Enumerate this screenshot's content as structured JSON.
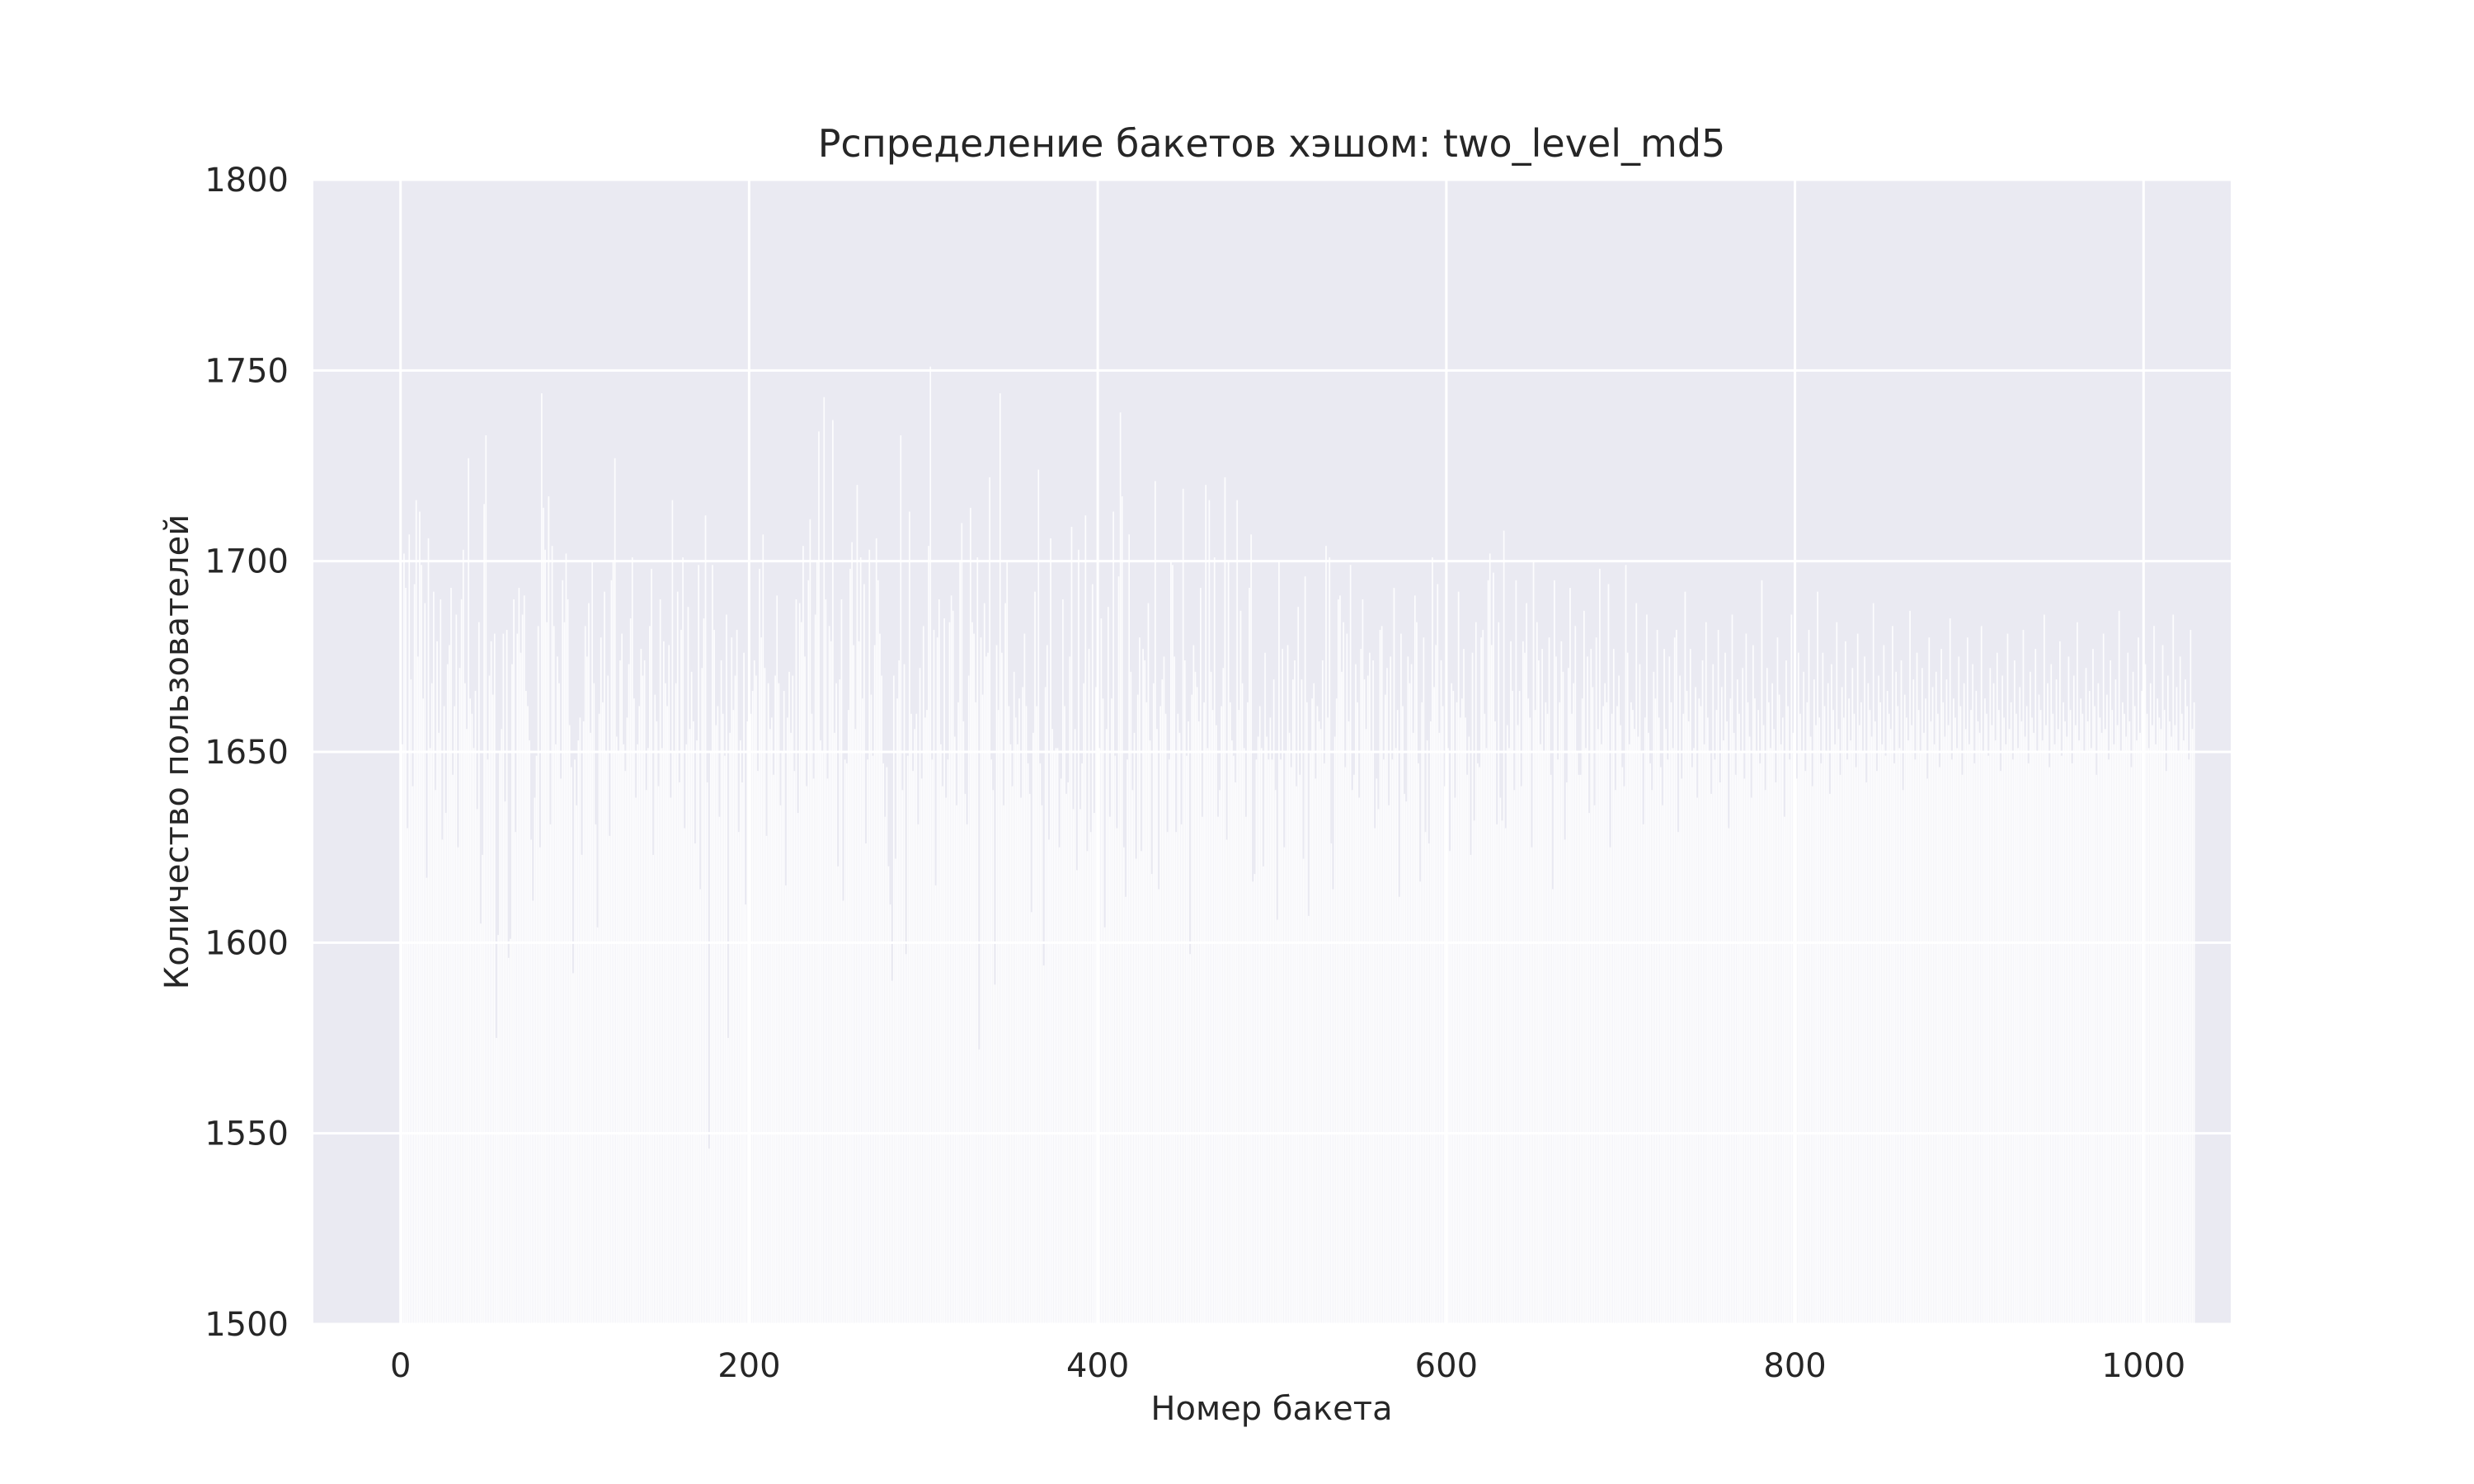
{
  "chart_data": {
    "type": "bar",
    "title": "Рспределение бакетов хэшом: two_level_md5",
    "xlabel": "Номер бакета",
    "ylabel": "Количество пользователей",
    "xlim": [
      -50,
      1050
    ],
    "ylim": [
      1500,
      1800
    ],
    "xticks": [
      0,
      200,
      400,
      600,
      800,
      1000
    ],
    "yticks": [
      1500,
      1550,
      1600,
      1650,
      1700,
      1750,
      1800
    ],
    "grid": true,
    "background": "#eaeaf2",
    "bar_color": "#ffffff",
    "bucket_count": 1000,
    "values": [
      1689,
      1652,
      1702,
      1693,
      1630,
      1707,
      1669,
      1641,
      1694,
      1716,
      1675,
      1713,
      1699,
      1664,
      1689,
      1617,
      1706,
      1651,
      1668,
      1692,
      1640,
      1679,
      1655,
      1690,
      1627,
      1662,
      1634,
      1673,
      1678,
      1693,
      1644,
      1662,
      1686,
      1625,
      1672,
      1690,
      1703,
      1668,
      1656,
      1727,
      1664,
      1660,
      1651,
      1666,
      1635,
      1684,
      1605,
      1623,
      1715,
      1733,
      1648,
      1670,
      1679,
      1665,
      1681,
      1575,
      1602,
      1650,
      1656,
      1681,
      1637,
      1682,
      1596,
      1601,
      1673,
      1690,
      1629,
      1681,
      1693,
      1676,
      1686,
      1691,
      1666,
      1662,
      1653,
      1627,
      1611,
      1638,
      1649,
      1683,
      1625,
      1744,
      1714,
      1703,
      1684,
      1717,
      1631,
      1704,
      1683,
      1652,
      1675,
      1668,
      1643,
      1695,
      1684,
      1702,
      1690,
      1657,
      1646,
      1592,
      1648,
      1636,
      1653,
      1659,
      1623,
      1658,
      1683,
      1675,
      1689,
      1655,
      1700,
      1668,
      1631,
      1604,
      1660,
      1680,
      1663,
      1692,
      1650,
      1670,
      1628,
      1695,
      1700,
      1727,
      1654,
      1650,
      1674,
      1681,
      1652,
      1645,
      1659,
      1673,
      1685,
      1701,
      1664,
      1638,
      1652,
      1662,
      1677,
      1670,
      1674,
      1640,
      1651,
      1683,
      1698,
      1623,
      1665,
      1658,
      1641,
      1690,
      1651,
      1679,
      1668,
      1662,
      1678,
      1638,
      1716,
      1650,
      1668,
      1692,
      1642,
      1682,
      1701,
      1630,
      1652,
      1688,
      1656,
      1671,
      1658,
      1626,
      1653,
      1699,
      1614,
      1672,
      1685,
      1712,
      1642,
      1546,
      1650,
      1699,
      1682,
      1657,
      1662,
      1633,
      1674,
      1660,
      1649,
      1686,
      1575,
      1655,
      1680,
      1661,
      1670,
      1682,
      1629,
      1653,
      1642,
      1676,
      1610,
      1658,
      1649,
      1660,
      1666,
      1674,
      1670,
      1645,
      1698,
      1680,
      1707,
      1672,
      1628,
      1668,
      1656,
      1659,
      1644,
      1670,
      1691,
      1668,
      1636,
      1650,
      1666,
      1615,
      1659,
      1671,
      1655,
      1670,
      1645,
      1690,
      1634,
      1689,
      1684,
      1704,
      1675,
      1641,
      1695,
      1711,
      1660,
      1643,
      1686,
      1700,
      1734,
      1653,
      1650,
      1743,
      1690,
      1643,
      1683,
      1679,
      1737,
      1655,
      1668,
      1620,
      1669,
      1690,
      1611,
      1648,
      1647,
      1661,
      1698,
      1705,
      1678,
      1656,
      1720,
      1679,
      1701,
      1664,
      1694,
      1626,
      1648,
      1703,
      1665,
      1649,
      1678,
      1706,
      1695,
      1681,
      1670,
      1647,
      1633,
      1646,
      1620,
      1610,
      1590,
      1670,
      1622,
      1664,
      1674,
      1733,
      1640,
      1673,
      1597,
      1649,
      1713,
      1660,
      1645,
      1656,
      1660,
      1631,
      1672,
      1643,
      1683,
      1659,
      1661,
      1704,
      1751,
      1648,
      1682,
      1615,
      1680,
      1690,
      1652,
      1641,
      1685,
      1638,
      1648,
      1684,
      1691,
      1687,
      1654,
      1636,
      1663,
      1700,
      1710,
      1658,
      1639,
      1631,
      1670,
      1714,
      1684,
      1681,
      1663,
      1701,
      1572,
      1680,
      1665,
      1689,
      1675,
      1676,
      1722,
      1648,
      1640,
      1589,
      1678,
      1661,
      1744,
      1676,
      1636,
      1689,
      1700,
      1662,
      1652,
      1641,
      1671,
      1659,
      1652,
      1664,
      1638,
      1667,
      1681,
      1662,
      1647,
      1639,
      1608,
      1655,
      1692,
      1662,
      1724,
      1647,
      1636,
      1594,
      1667,
      1678,
      1627,
      1706,
      1656,
      1650,
      1651,
      1651,
      1625,
      1643,
      1690,
      1662,
      1639,
      1642,
      1675,
      1709,
      1635,
      1656,
      1619,
      1703,
      1635,
      1647,
      1668,
      1712,
      1624,
      1677,
      1629,
      1694,
      1634,
      1667,
      1660,
      1651,
      1685,
      1664,
      1604,
      1656,
      1688,
      1633,
      1664,
      1713,
      1649,
      1630,
      1696,
      1739,
      1717,
      1625,
      1612,
      1648,
      1707,
      1671,
      1640,
      1655,
      1622,
      1665,
      1680,
      1624,
      1677,
      1674,
      1663,
      1689,
      1653,
      1618,
      1668,
      1721,
      1656,
      1614,
      1662,
      1669,
      1675,
      1660,
      1629,
      1648,
      1700,
      1699,
      1675,
      1629,
      1660,
      1655,
      1631,
      1719,
      1674,
      1649,
      1658,
      1597,
      1665,
      1678,
      1671,
      1667,
      1658,
      1693,
      1633,
      1663,
      1720,
      1651,
      1716,
      1671,
      1661,
      1701,
      1657,
      1633,
      1640,
      1662,
      1672,
      1722,
      1627,
      1700,
      1663,
      1653,
      1649,
      1642,
      1716,
      1661,
      1687,
      1668,
      1651,
      1633,
      1663,
      1693,
      1707,
      1616,
      1618,
      1648,
      1654,
      1662,
      1651,
      1620,
      1676,
      1654,
      1648,
      1659,
      1648,
      1669,
      1640,
      1606,
      1700,
      1648,
      1677,
      1625,
      1650,
      1678,
      1655,
      1646,
      1669,
      1674,
      1641,
      1688,
      1644,
      1669,
      1622,
      1696,
      1663,
      1607,
      1650,
      1664,
      1668,
      1643,
      1662,
      1658,
      1656,
      1674,
      1647,
      1704,
      1659,
      1701,
      1626,
      1614,
      1654,
      1664,
      1690,
      1691,
      1671,
      1684,
      1646,
      1681,
      1658,
      1699,
      1640,
      1644,
      1673,
      1663,
      1638,
      1677,
      1690,
      1669,
      1656,
      1670,
      1676,
      1650,
      1674,
      1630,
      1643,
      1635,
      1682,
      1683,
      1648,
      1665,
      1672,
      1636,
      1675,
      1648,
      1693,
      1651,
      1661,
      1612,
      1681,
      1662,
      1639,
      1637,
      1675,
      1668,
      1673,
      1655,
      1691,
      1684,
      1647,
      1616,
      1663,
      1680,
      1629,
      1653,
      1626,
      1658,
      1701,
      1667,
      1678,
      1694,
      1655,
      1674,
      1662,
      1641,
      1648,
      1651,
      1624,
      1668,
      1666,
      1638,
      1663,
      1692,
      1659,
      1664,
      1677,
      1659,
      1644,
      1654,
      1623,
      1676,
      1632,
      1684,
      1647,
      1646,
      1680,
      1682,
      1660,
      1651,
      1695,
      1702,
      1678,
      1697,
      1658,
      1631,
      1684,
      1638,
      1632,
      1708,
      1630,
      1657,
      1651,
      1679,
      1666,
      1640,
      1695,
      1657,
      1666,
      1641,
      1679,
      1676,
      1689,
      1664,
      1659,
      1625,
      1700,
      1661,
      1684,
      1674,
      1652,
      1677,
      1650,
      1663,
      1660,
      1680,
      1644,
      1614,
      1695,
      1675,
      1648,
      1663,
      1679,
      1671,
      1627,
      1642,
      1672,
      1693,
      1660,
      1668,
      1683,
      1650,
      1644,
      1644,
      1664,
      1687,
      1651,
      1675,
      1634,
      1677,
      1667,
      1636,
      1680,
      1656,
      1698,
      1652,
      1662,
      1668,
      1663,
      1694,
      1625,
      1660,
      1677,
      1640,
      1662,
      1670,
      1657,
      1646,
      1641,
      1699,
      1676,
      1652,
      1663,
      1661,
      1656,
      1689,
      1654,
      1673,
      1650,
      1631,
      1659,
      1686,
      1655,
      1647,
      1640,
      1671,
      1664,
      1682,
      1659,
      1646,
      1636,
      1677,
      1656,
      1648,
      1675,
      1663,
      1651,
      1680,
      1682,
      1629,
      1670,
      1643,
      1660,
      1692,
      1666,
      1658,
      1677,
      1646,
      1651,
      1667,
      1638,
      1664,
      1662,
      1674,
      1652,
      1684,
      1659,
      1650,
      1639,
      1673,
      1648,
      1661,
      1682,
      1642,
      1667,
      1653,
      1676,
      1658,
      1630,
      1664,
      1686,
      1655,
      1644,
      1669,
      1660,
      1650,
      1672,
      1643,
      1681,
      1663,
      1654,
      1638,
      1678,
      1664,
      1650,
      1661,
      1647,
      1695,
      1657,
      1640,
      1672,
      1663,
      1651,
      1668,
      1656,
      1642,
      1680,
      1665,
      1652,
      1659,
      1633,
      1674,
      1662,
      1648,
      1686,
      1655,
      1667,
      1643,
      1676,
      1660,
      1650,
      1671,
      1645,
      1663,
      1682,
      1654,
      1641,
      1669,
      1657,
      1692,
      1659,
      1647,
      1676,
      1662,
      1650,
      1668,
      1639,
      1673,
      1661,
      1652,
      1684,
      1656,
      1644,
      1667,
      1659,
      1679,
      1648,
      1664,
      1653,
      1672,
      1660,
      1646,
      1681,
      1657,
      1663,
      1650,
      1675,
      1642,
      1668,
      1661,
      1654,
      1689,
      1658,
      1645,
      1670,
      1663,
      1652,
      1678,
      1649,
      1666,
      1660,
      1656,
      1683,
      1647,
      1671,
      1662,
      1651,
      1674,
      1640,
      1665,
      1659,
      1653,
      1687,
      1657,
      1669,
      1648,
      1676,
      1661,
      1650,
      1672,
      1655,
      1664,
      1643,
      1680,
      1658,
      1667,
      1652,
      1671,
      1660,
      1646,
      1677,
      1663,
      1654,
      1669,
      1657,
      1685,
      1648,
      1664,
      1659,
      1651,
      1675,
      1662,
      1644,
      1668,
      1656,
      1680,
      1652,
      1661,
      1673,
      1647,
      1666,
      1658,
      1655,
      1683,
      1650,
      1664,
      1660,
      1649,
      1672,
      1657,
      1668,
      1653,
      1676,
      1661,
      1645,
      1670,
      1659,
      1652,
      1681,
      1656,
      1663,
      1648,
      1674,
      1660,
      1651,
      1667,
      1658,
      1682,
      1654,
      1662,
      1647,
      1671,
      1659,
      1655,
      1677,
      1650,
      1665,
      1661,
      1653,
      1686,
      1657,
      1668,
      1646,
      1673,
      1660,
      1652,
      1669,
      1656,
      1679,
      1649,
      1663,
      1658,
      1654,
      1675,
      1661,
      1647,
      1670,
      1657,
      1684,
      1653,
      1664,
      1660,
      1650,
      1672,
      1658,
      1666,
      1651,
      1677,
      1662,
      1644,
      1668,
      1659,
      1655,
      1681,
      1656,
      1665,
      1648,
      1674,
      1661,
      1652,
      1669,
      1657,
      1687,
      1650,
      1663,
      1660,
      1654,
      1676,
      1658,
      1646,
      1671,
      1662,
      1653,
      1680,
      1655,
      1666,
      1649,
      1673,
      1660,
      1651,
      1668,
      1657,
      1683,
      1652,
      1664,
      1659,
      1656,
      1678,
      1661,
      1645,
      1670,
      1658,
      1654,
      1686,
      1657,
      1667,
      1650,
      1675,
      1660,
      1653,
      1669,
      1662,
      1648,
      1682,
      1656,
      1663
    ]
  }
}
